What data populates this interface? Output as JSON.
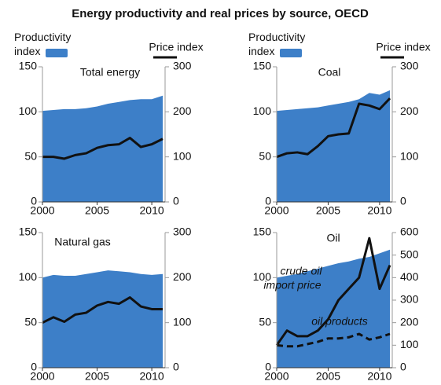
{
  "title": "Energy productivity and real prices by source, OECD",
  "chart_data": [
    {
      "type": "area",
      "title": "Total energy",
      "x": [
        2000,
        2001,
        2002,
        2003,
        2004,
        2005,
        2006,
        2007,
        2008,
        2009,
        2010,
        2011
      ],
      "xlim": [
        2000,
        2011
      ],
      "xticks": [
        2000,
        2005,
        2010
      ],
      "ylim": [
        0,
        150
      ],
      "yticks": [
        0,
        50,
        100,
        150
      ],
      "y2lim": [
        0,
        300
      ],
      "y2ticks": [
        0,
        100,
        200,
        300
      ],
      "series": [
        {
          "name": "Productivity index",
          "color": "#3d7fc8",
          "values": [
            101,
            102,
            103,
            103,
            104,
            106,
            109,
            111,
            113,
            114,
            114,
            118
          ]
        },
        {
          "name": "Price index",
          "color": "#111111",
          "axis": "y2",
          "values": [
            100,
            100,
            96,
            104,
            108,
            120,
            126,
            128,
            142,
            122,
            128,
            140
          ]
        }
      ]
    },
    {
      "type": "area",
      "title": "Coal",
      "x": [
        2000,
        2001,
        2002,
        2003,
        2004,
        2005,
        2006,
        2007,
        2008,
        2009,
        2010,
        2011
      ],
      "xlim": [
        2000,
        2011
      ],
      "xticks": [
        2000,
        2005,
        2010
      ],
      "ylim": [
        0,
        150
      ],
      "yticks": [
        0,
        50,
        100,
        150
      ],
      "y2lim": [
        0,
        300
      ],
      "y2ticks": [
        0,
        100,
        200,
        300
      ],
      "series": [
        {
          "name": "Productivity index",
          "color": "#3d7fc8",
          "values": [
            101,
            102,
            103,
            104,
            105,
            107,
            109,
            111,
            114,
            121,
            119,
            124
          ]
        },
        {
          "name": "Price index",
          "color": "#111111",
          "axis": "y2",
          "values": [
            100,
            108,
            110,
            106,
            124,
            146,
            150,
            152,
            218,
            214,
            206,
            230
          ]
        }
      ]
    },
    {
      "type": "area",
      "title": "Natural gas",
      "x": [
        2000,
        2001,
        2002,
        2003,
        2004,
        2005,
        2006,
        2007,
        2008,
        2009,
        2010,
        2011
      ],
      "xlim": [
        2000,
        2011
      ],
      "xticks": [
        2000,
        2005,
        2010
      ],
      "ylim": [
        0,
        150
      ],
      "yticks": [
        0,
        50,
        100,
        150
      ],
      "y2lim": [
        0,
        300
      ],
      "y2ticks": [
        0,
        100,
        200,
        300
      ],
      "series": [
        {
          "color": "#3d7fc8",
          "values": [
            100,
            103,
            102,
            102,
            104,
            106,
            108,
            107,
            106,
            104,
            103,
            104
          ]
        },
        {
          "color": "#111111",
          "axis": "y2",
          "values": [
            100,
            112,
            102,
            118,
            122,
            138,
            146,
            142,
            156,
            136,
            130,
            130
          ]
        }
      ]
    },
    {
      "type": "area",
      "title": "Oil",
      "x": [
        2000,
        2001,
        2002,
        2003,
        2004,
        2005,
        2006,
        2007,
        2008,
        2009,
        2010,
        2011
      ],
      "xlim": [
        2000,
        2011
      ],
      "xticks": [
        2000,
        2005,
        2010
      ],
      "ylim": [
        0,
        150
      ],
      "yticks": [
        0,
        50,
        100,
        150
      ],
      "y2lim": [
        0,
        600
      ],
      "y2ticks": [
        0,
        100,
        200,
        300,
        400,
        500,
        600
      ],
      "annotations": [
        "crude oil",
        "import price",
        "oil products"
      ],
      "series": [
        {
          "color": "#3d7fc8",
          "values": [
            100,
            102,
            104,
            107,
            110,
            113,
            116,
            118,
            121,
            123,
            127,
            131
          ]
        },
        {
          "color": "#111111",
          "axis": "y2",
          "values": [
            100,
            165,
            140,
            140,
            165,
            215,
            300,
            350,
            400,
            575,
            350,
            455
          ]
        },
        {
          "color": "#111111",
          "axis": "y2",
          "dash": true,
          "values": [
            100,
            95,
            95,
            105,
            115,
            130,
            130,
            135,
            150,
            125,
            135,
            150
          ]
        }
      ]
    }
  ]
}
